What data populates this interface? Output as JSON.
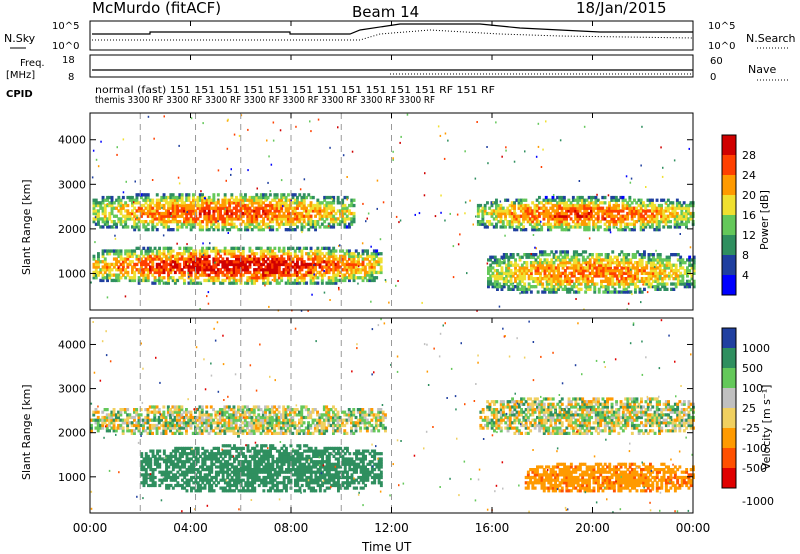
{
  "header": {
    "station": "McMurdo (fitACF)",
    "beam": "Beam 14",
    "date": "18/Jan/2015"
  },
  "top_panels": {
    "nsky_label": "N.Sky",
    "nsky_ticks": [
      "10^5",
      "10^0"
    ],
    "nsearch_label": "N.Search",
    "nsearch_ticks": [
      "10^5",
      "10^0"
    ],
    "freq_label_line1": "Freq.",
    "freq_label_line2": "[MHz]",
    "freq_ticks": [
      "18",
      "8"
    ],
    "nave_label": "Nave",
    "nave_ticks": [
      "60",
      "0"
    ],
    "cpid_label": "CPID",
    "cpid_text_row1": "normal (fast) 151 151 151 151 151 151 151 151 151 151 151 RF 151 RF",
    "cpid_text_row2": "themis 3300 RF 3300 RF 3300 RF 3300 RF 3300 RF 3300 RF 3300 RF 3300 RF"
  },
  "x_axis": {
    "label": "Time UT",
    "ticks": [
      "00:00",
      "04:00",
      "08:00",
      "12:00",
      "16:00",
      "20:00",
      "00:00"
    ]
  },
  "power_panel": {
    "ylabel": "Slant Range [km]",
    "yticks": [
      "4000",
      "3000",
      "2000",
      "1000"
    ],
    "colorbar_label": "Power [dB]",
    "colorbar_ticks": [
      "28",
      "24",
      "20",
      "16",
      "12",
      "8",
      "4"
    ]
  },
  "velocity_panel": {
    "ylabel": "Slant Range [km]",
    "yticks": [
      "4000",
      "3000",
      "2000",
      "1000"
    ],
    "colorbar_label": "Velocity [m s⁻¹]",
    "colorbar_ticks": [
      "1000",
      "500",
      "100",
      "25",
      "-25",
      "-100",
      "-500",
      "-1000"
    ]
  },
  "chart_data": [
    {
      "type": "heatmap",
      "title": "Power",
      "xlabel": "Time UT",
      "ylabel": "Slant Range [km]",
      "xlim": [
        0,
        24
      ],
      "ylim": [
        180,
        4600
      ],
      "colorbar": {
        "label": "Power [dB]",
        "range": [
          0,
          32
        ],
        "ticks": [
          4,
          8,
          12,
          16,
          20,
          24,
          28
        ]
      },
      "colors": [
        "#0000ff",
        "#1f3f9f",
        "#2f8f5f",
        "#64c85a",
        "#f0e030",
        "#ff9a00",
        "#ff4000",
        "#d00000"
      ],
      "regions": [
        {
          "t_start": 0.1,
          "t_end": 11.6,
          "r_start": 700,
          "r_end": 1600,
          "peak_db": 30
        },
        {
          "t_start": 0.1,
          "t_end": 10.5,
          "r_start": 1900,
          "r_end": 2800,
          "peak_db": 26
        },
        {
          "t_start": 15.4,
          "t_end": 24.0,
          "r_start": 1900,
          "r_end": 2700,
          "peak_db": 26
        },
        {
          "t_start": 15.8,
          "t_end": 24.0,
          "r_start": 500,
          "r_end": 1500,
          "peak_db": 24
        }
      ]
    },
    {
      "type": "heatmap",
      "title": "Velocity",
      "xlabel": "Time UT",
      "ylabel": "Slant Range [km]",
      "xlim": [
        0,
        24
      ],
      "ylim": [
        180,
        4600
      ],
      "colorbar": {
        "label": "Velocity [m s⁻¹]",
        "range": [
          -1000,
          1000
        ],
        "ticks": [
          1000,
          500,
          100,
          25,
          -25,
          -100,
          -500,
          -1000
        ]
      },
      "colors": [
        "#2040a0",
        "#2f8f5f",
        "#64c85a",
        "#c0c0c0",
        "#f0d060",
        "#ff9a00",
        "#ff5000",
        "#e00000"
      ],
      "regions": [
        {
          "t_start": 2.0,
          "t_end": 11.6,
          "r_start": 600,
          "r_end": 1700,
          "velocity": 300
        },
        {
          "t_start": 0.0,
          "t_end": 11.7,
          "r_start": 1900,
          "r_end": 2600,
          "velocity": 0
        },
        {
          "t_start": 15.5,
          "t_end": 24.0,
          "r_start": 1900,
          "r_end": 2800,
          "velocity": 0
        },
        {
          "t_start": 17.3,
          "t_end": 24.0,
          "r_start": 600,
          "r_end": 1300,
          "velocity": -400
        }
      ]
    }
  ]
}
